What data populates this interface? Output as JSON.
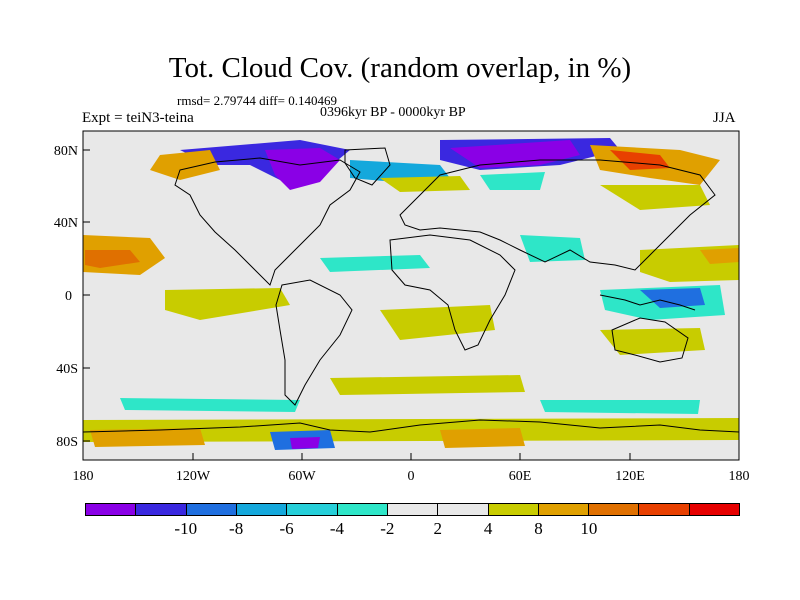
{
  "title": "Tot. Cloud Cov. (random overlap, in %)",
  "stats": "rmsd= 2.79744 diff= 0.140469",
  "period": "0396kyr BP - 0000kyr BP",
  "experiment": "Expt = teiN3-teina",
  "season": "JJA",
  "lat_ticks": [
    "80N",
    "40N",
    "0",
    "40S",
    "80S"
  ],
  "lon_ticks": [
    "180",
    "120W",
    "60W",
    "0",
    "60E",
    "120E",
    "180"
  ],
  "colorbar": {
    "colors": [
      "#8a00e6",
      "#3a28e0",
      "#1f6fe0",
      "#14a8dc",
      "#26cfd9",
      "#2ee6c8",
      "#e8e8e8",
      "#e8e8e8",
      "#c8cc00",
      "#e0a000",
      "#e07000",
      "#e84000",
      "#e60000"
    ],
    "labels": [
      "-10",
      "-8",
      "-6",
      "-4",
      "-2",
      "2",
      "4",
      "8",
      "10"
    ]
  }
}
